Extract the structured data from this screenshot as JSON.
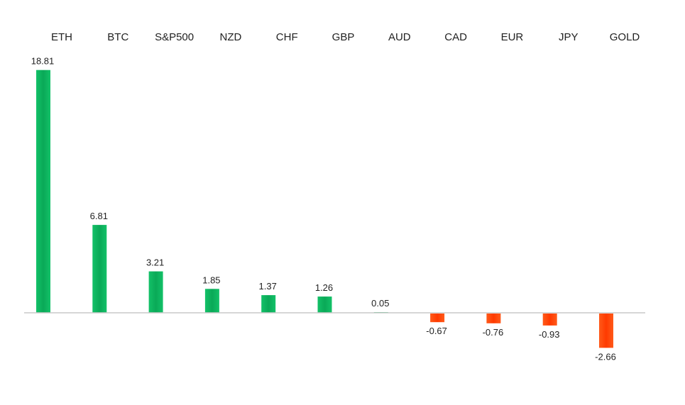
{
  "chart_data": {
    "type": "bar",
    "title": "",
    "xlabel": "",
    "ylabel": "",
    "categories": [
      "ETH",
      "BTC",
      "S&P500",
      "NZD",
      "CHF",
      "GBP",
      "AUD",
      "CAD",
      "EUR",
      "JPY",
      "GOLD"
    ],
    "values": [
      18.81,
      6.81,
      3.21,
      1.85,
      1.37,
      1.26,
      0.05,
      -0.67,
      -0.76,
      -0.93,
      -2.66
    ],
    "value_labels": [
      "18.81",
      "6.81",
      "3.21",
      "1.85",
      "1.37",
      "1.26",
      "0.05",
      "-0.67",
      "-0.76",
      "-0.93",
      "-2.66"
    ],
    "category_axis_position": "top",
    "grid": false,
    "legend": "none",
    "colors": {
      "positive": "#0db35c",
      "negative": "#ff4000",
      "axis": "#c8c8c8",
      "text": "#222222"
    }
  }
}
